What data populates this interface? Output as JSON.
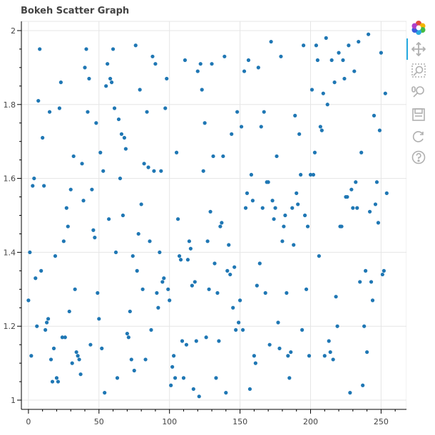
{
  "chart_data": {
    "type": "scatter",
    "title": "Bokeh Scatter Graph",
    "xlabel": "",
    "ylabel": "",
    "xlim": [
      -5,
      268
    ],
    "ylim": [
      0.975,
      2.025
    ],
    "x_ticks": [
      0,
      50,
      100,
      150,
      200,
      250
    ],
    "y_ticks": [
      1,
      1.2,
      1.4,
      1.6,
      1.8,
      2
    ],
    "x_tick_labels": [
      "0",
      "50",
      "100",
      "150",
      "200",
      "250"
    ],
    "y_tick_labels": [
      "1",
      "1.2",
      "1.4",
      "1.6",
      "1.8",
      "2"
    ],
    "grid": true,
    "marker_color": "#1f77b4",
    "points": [
      [
        0,
        1.27
      ],
      [
        1,
        1.4
      ],
      [
        2,
        1.12
      ],
      [
        3,
        1.58
      ],
      [
        4,
        1.6
      ],
      [
        5,
        1.33
      ],
      [
        6,
        1.2
      ],
      [
        7,
        1.81
      ],
      [
        8,
        1.95
      ],
      [
        9,
        1.35
      ],
      [
        10,
        1.71
      ],
      [
        11,
        1.58
      ],
      [
        12,
        1.19
      ],
      [
        13,
        1.21
      ],
      [
        14,
        1.22
      ],
      [
        15,
        1.78
      ],
      [
        16,
        1.11
      ],
      [
        17,
        1.05
      ],
      [
        18,
        1.14
      ],
      [
        19,
        1.39
      ],
      [
        20,
        1.06
      ],
      [
        21,
        1.05
      ],
      [
        22,
        1.79
      ],
      [
        23,
        1.86
      ],
      [
        24,
        1.17
      ],
      [
        25,
        1.43
      ],
      [
        26,
        1.17
      ],
      [
        27,
        1.52
      ],
      [
        28,
        1.47
      ],
      [
        29,
        1.24
      ],
      [
        30,
        1.57
      ],
      [
        31,
        1.1
      ],
      [
        32,
        1.66
      ],
      [
        33,
        1.3
      ],
      [
        34,
        1.13
      ],
      [
        35,
        1.12
      ],
      [
        36,
        1.11
      ],
      [
        37,
        1.07
      ],
      [
        38,
        1.64
      ],
      [
        39,
        1.54
      ],
      [
        40,
        1.9
      ],
      [
        41,
        1.95
      ],
      [
        42,
        1.78
      ],
      [
        43,
        1.87
      ],
      [
        44,
        1.15
      ],
      [
        45,
        1.57
      ],
      [
        46,
        1.46
      ],
      [
        47,
        1.44
      ],
      [
        48,
        1.75
      ],
      [
        49,
        1.29
      ],
      [
        50,
        1.22
      ],
      [
        51,
        1.67
      ],
      [
        52,
        1.14
      ],
      [
        53,
        1.62
      ],
      [
        54,
        1.02
      ],
      [
        55,
        1.85
      ],
      [
        56,
        1.91
      ],
      [
        57,
        1.49
      ],
      [
        58,
        1.87
      ],
      [
        59,
        1.86
      ],
      [
        60,
        1.95
      ],
      [
        61,
        1.79
      ],
      [
        62,
        1.4
      ],
      [
        63,
        1.06
      ],
      [
        64,
        1.76
      ],
      [
        65,
        1.6
      ],
      [
        66,
        1.72
      ],
      [
        67,
        1.5
      ],
      [
        68,
        1.71
      ],
      [
        69,
        1.68
      ],
      [
        70,
        1.18
      ],
      [
        71,
        1.17
      ],
      [
        72,
        1.24
      ],
      [
        73,
        1.11
      ],
      [
        74,
        1.39
      ],
      [
        75,
        1.08
      ],
      [
        76,
        1.96
      ],
      [
        77,
        1.35
      ],
      [
        78,
        1.45
      ],
      [
        79,
        1.84
      ],
      [
        80,
        1.53
      ],
      [
        81,
        1.3
      ],
      [
        82,
        1.64
      ],
      [
        83,
        1.11
      ],
      [
        84,
        1.78
      ],
      [
        85,
        1.63
      ],
      [
        86,
        1.43
      ],
      [
        87,
        1.19
      ],
      [
        88,
        1.93
      ],
      [
        89,
        1.62
      ],
      [
        90,
        1.91
      ],
      [
        91,
        1.29
      ],
      [
        92,
        1.25
      ],
      [
        93,
        1.4
      ],
      [
        94,
        1.62
      ],
      [
        95,
        1.32
      ],
      [
        96,
        1.33
      ],
      [
        97,
        1.79
      ],
      [
        98,
        1.87
      ],
      [
        99,
        1.3
      ],
      [
        100,
        1.27
      ],
      [
        101,
        1.04
      ],
      [
        102,
        1.09
      ],
      [
        103,
        1.12
      ],
      [
        104,
        1.06
      ],
      [
        105,
        1.67
      ],
      [
        106,
        1.49
      ],
      [
        107,
        1.39
      ],
      [
        108,
        1.38
      ],
      [
        109,
        1.16
      ],
      [
        110,
        1.06
      ],
      [
        111,
        1.92
      ],
      [
        112,
        1.15
      ],
      [
        113,
        1.38
      ],
      [
        114,
        1.43
      ],
      [
        115,
        1.41
      ],
      [
        116,
        1.31
      ],
      [
        117,
        1.03
      ],
      [
        118,
        1.32
      ],
      [
        119,
        1.16
      ],
      [
        120,
        1.89
      ],
      [
        121,
        1.01
      ],
      [
        122,
        1.91
      ],
      [
        123,
        1.84
      ],
      [
        124,
        1.62
      ],
      [
        125,
        1.75
      ],
      [
        126,
        1.17
      ],
      [
        127,
        1.43
      ],
      [
        128,
        1.3
      ],
      [
        129,
        1.51
      ],
      [
        130,
        1.91
      ],
      [
        131,
        1.66
      ],
      [
        132,
        1.37
      ],
      [
        133,
        1.06
      ],
      [
        134,
        1.29
      ],
      [
        135,
        1.16
      ],
      [
        136,
        1.47
      ],
      [
        137,
        1.48
      ],
      [
        138,
        1.66
      ],
      [
        139,
        1.93
      ],
      [
        140,
        1.02
      ],
      [
        141,
        1.35
      ],
      [
        142,
        1.42
      ],
      [
        143,
        1.34
      ],
      [
        144,
        1.72
      ],
      [
        145,
        1.25
      ],
      [
        146,
        1.36
      ],
      [
        147,
        1.19
      ],
      [
        148,
        1.78
      ],
      [
        149,
        1.21
      ],
      [
        150,
        1.27
      ],
      [
        151,
        1.74
      ],
      [
        152,
        1.19
      ],
      [
        153,
        1.89
      ],
      [
        154,
        1.52
      ],
      [
        155,
        1.56
      ],
      [
        156,
        1.92
      ],
      [
        157,
        1.03
      ],
      [
        158,
        1.61
      ],
      [
        159,
        1.54
      ],
      [
        160,
        1.12
      ],
      [
        161,
        1.1
      ],
      [
        162,
        1.31
      ],
      [
        163,
        1.9
      ],
      [
        164,
        1.37
      ],
      [
        165,
        1.74
      ],
      [
        166,
        1.52
      ],
      [
        167,
        1.78
      ],
      [
        168,
        1.29
      ],
      [
        169,
        1.59
      ],
      [
        170,
        1.59
      ],
      [
        171,
        1.15
      ],
      [
        172,
        1.97
      ],
      [
        173,
        1.54
      ],
      [
        174,
        1.49
      ],
      [
        175,
        1.52
      ],
      [
        176,
        1.66
      ],
      [
        177,
        1.21
      ],
      [
        178,
        1.14
      ],
      [
        179,
        1.93
      ],
      [
        180,
        1.43
      ],
      [
        181,
        1.47
      ],
      [
        182,
        1.5
      ],
      [
        183,
        1.29
      ],
      [
        184,
        1.12
      ],
      [
        185,
        1.06
      ],
      [
        186,
        1.13
      ],
      [
        187,
        1.52
      ],
      [
        188,
        1.42
      ],
      [
        189,
        1.77
      ],
      [
        190,
        1.56
      ],
      [
        191,
        1.53
      ],
      [
        192,
        1.72
      ],
      [
        193,
        1.61
      ],
      [
        194,
        1.19
      ],
      [
        195,
        1.96
      ],
      [
        196,
        1.5
      ],
      [
        197,
        1.3
      ],
      [
        198,
        1.47
      ],
      [
        199,
        1.12
      ],
      [
        200,
        1.61
      ],
      [
        201,
        1.84
      ],
      [
        202,
        1.61
      ],
      [
        203,
        1.67
      ],
      [
        204,
        1.96
      ],
      [
        205,
        1.92
      ],
      [
        206,
        1.39
      ],
      [
        207,
        1.74
      ],
      [
        208,
        1.73
      ],
      [
        209,
        1.83
      ],
      [
        210,
        1.12
      ],
      [
        211,
        1.98
      ],
      [
        212,
        1.8
      ],
      [
        213,
        1.16
      ],
      [
        214,
        1.13
      ],
      [
        215,
        1.92
      ],
      [
        216,
        1.11
      ],
      [
        217,
        1.86
      ],
      [
        218,
        1.28
      ],
      [
        219,
        1.2
      ],
      [
        220,
        1.94
      ],
      [
        221,
        1.47
      ],
      [
        222,
        1.47
      ],
      [
        223,
        1.92
      ],
      [
        224,
        1.87
      ],
      [
        225,
        1.55
      ],
      [
        226,
        1.55
      ],
      [
        227,
        1.96
      ],
      [
        228,
        1.02
      ],
      [
        229,
        1.57
      ],
      [
        230,
        1.52
      ],
      [
        231,
        1.89
      ],
      [
        232,
        1.59
      ],
      [
        233,
        1.52
      ],
      [
        234,
        1.97
      ],
      [
        235,
        1.32
      ],
      [
        236,
        1.67
      ],
      [
        237,
        1.04
      ],
      [
        238,
        1.2
      ],
      [
        239,
        1.35
      ],
      [
        240,
        1.13
      ],
      [
        241,
        1.99
      ],
      [
        242,
        1.51
      ],
      [
        243,
        1.32
      ],
      [
        244,
        1.27
      ],
      [
        245,
        1.77
      ],
      [
        246,
        1.53
      ],
      [
        247,
        1.59
      ],
      [
        248,
        1.48
      ],
      [
        249,
        1.73
      ],
      [
        250,
        1.94
      ],
      [
        251,
        1.34
      ],
      [
        252,
        1.35
      ],
      [
        253,
        1.83
      ],
      [
        254,
        1.56
      ]
    ]
  },
  "toolbar": {
    "tools": [
      {
        "name": "bokeh-logo-icon",
        "interactable": true
      },
      {
        "name": "pan-icon",
        "interactable": true,
        "active": true
      },
      {
        "name": "box-zoom-icon",
        "interactable": true
      },
      {
        "name": "wheel-zoom-icon",
        "interactable": true
      },
      {
        "name": "save-icon",
        "interactable": true
      },
      {
        "name": "reset-icon",
        "interactable": true
      },
      {
        "name": "help-icon",
        "interactable": true
      }
    ],
    "icon_color": "#b0b0b0"
  }
}
